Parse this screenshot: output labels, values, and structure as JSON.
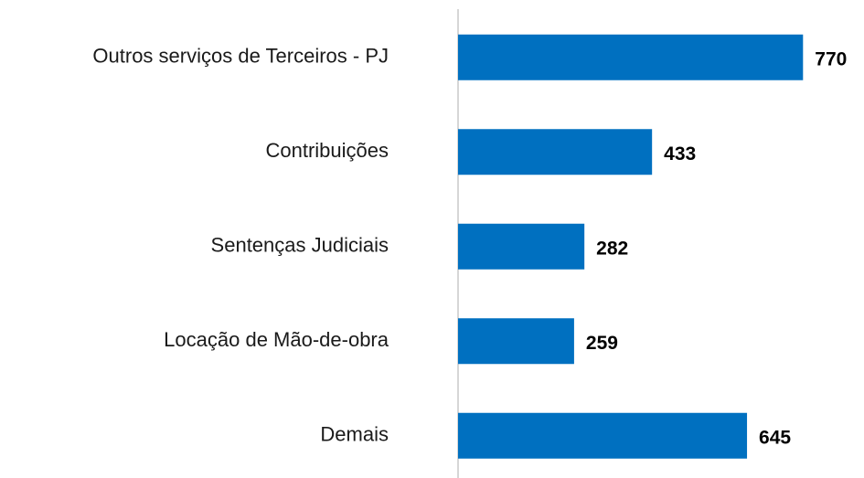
{
  "chart_data": {
    "type": "hbar",
    "categories": [
      "Outros serviços de Terceiros - PJ",
      "Contribuições",
      "Sentenças Judiciais",
      "Locação de Mão-de-obra",
      "Demais"
    ],
    "values": [
      770,
      433,
      282,
      259,
      645
    ],
    "color": "#0070c0",
    "xlim": [
      0,
      900
    ]
  }
}
